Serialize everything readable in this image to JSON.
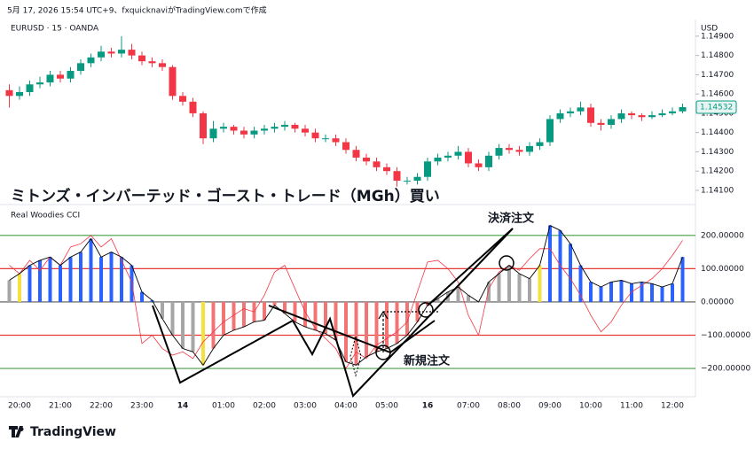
{
  "header": "5月 17, 2026 15:54 UTC+9、fxquicknaviがTradingView.comで作成",
  "overlay_title": "ミトンズ・インバーテッド・ゴースト・トレード（MGh）買い",
  "annotations": [
    "決済注文",
    "新規注文"
  ],
  "brand": "TradingView",
  "chart_data": [
    {
      "type": "candlestick",
      "title": "EURUSD · 15 · OANDA",
      "y_label": "USD",
      "up_color": "#089981",
      "down_color": "#f23645",
      "ylim": [
        1.1404,
        1.1495
      ],
      "yticks": [
        {
          "value": 1.141,
          "label": "1.14100"
        },
        {
          "value": 1.142,
          "label": "1.14200"
        },
        {
          "value": 1.143,
          "label": "1.14300"
        },
        {
          "value": 1.144,
          "label": "1.14400"
        },
        {
          "value": 1.145,
          "label": "1.14500"
        },
        {
          "value": 1.146,
          "label": "1.14600"
        },
        {
          "value": 1.147,
          "label": "1.14700"
        },
        {
          "value": 1.148,
          "label": "1.14800"
        },
        {
          "value": 1.149,
          "label": "1.14900"
        }
      ],
      "open": [
        1.1462,
        1.1459,
        1.1461,
        1.1465,
        1.1466,
        1.147,
        1.1468,
        1.1472,
        1.1476,
        1.1479,
        1.1482,
        1.1481,
        1.1483,
        1.148,
        1.1477,
        1.1476,
        1.1474,
        1.1459,
        1.1456,
        1.145,
        1.1437,
        1.1442,
        1.1443,
        1.1441,
        1.1439,
        1.1441,
        1.1442,
        1.1443,
        1.1444,
        1.1442,
        1.144,
        1.1437,
        1.1437,
        1.1435,
        1.1431,
        1.1427,
        1.1425,
        1.1422,
        1.142,
        1.1415,
        1.1415,
        1.1417,
        1.1425,
        1.1427,
        1.1428,
        1.143,
        1.1424,
        1.1422,
        1.1428,
        1.1432,
        1.1431,
        1.143,
        1.1433,
        1.1435,
        1.1447,
        1.145,
        1.1451,
        1.1453,
        1.1445,
        1.1444,
        1.1447,
        1.145,
        1.1449,
        1.1448,
        1.1449,
        1.145,
        1.1451
      ],
      "high": [
        1.1465,
        1.1464,
        1.1467,
        1.1469,
        1.1472,
        1.1472,
        1.1474,
        1.1478,
        1.1481,
        1.1485,
        1.1484,
        1.149,
        1.1486,
        1.1482,
        1.1479,
        1.1478,
        1.1475,
        1.1461,
        1.1458,
        1.1451,
        1.1446,
        1.1445,
        1.1444,
        1.1443,
        1.1443,
        1.1444,
        1.1445,
        1.1446,
        1.1445,
        1.1444,
        1.1442,
        1.1439,
        1.1439,
        1.1437,
        1.1433,
        1.1429,
        1.1427,
        1.1424,
        1.1422,
        1.1417,
        1.1419,
        1.1427,
        1.1429,
        1.143,
        1.1433,
        1.1432,
        1.1426,
        1.143,
        1.1434,
        1.1434,
        1.1433,
        1.1435,
        1.1437,
        1.1449,
        1.1452,
        1.1453,
        1.1456,
        1.1455,
        1.1447,
        1.1449,
        1.1452,
        1.1451,
        1.145,
        1.1451,
        1.1452,
        1.1453,
        1.1455
      ],
      "low": [
        1.1453,
        1.1457,
        1.1459,
        1.1463,
        1.1464,
        1.1466,
        1.1466,
        1.147,
        1.1474,
        1.1477,
        1.1479,
        1.1479,
        1.1478,
        1.1475,
        1.1474,
        1.1472,
        1.1457,
        1.1454,
        1.1448,
        1.1434,
        1.1435,
        1.144,
        1.1439,
        1.1437,
        1.1437,
        1.1439,
        1.144,
        1.1441,
        1.144,
        1.1438,
        1.1435,
        1.1435,
        1.1433,
        1.1429,
        1.1425,
        1.1423,
        1.142,
        1.1418,
        1.1412,
        1.1413,
        1.1413,
        1.1415,
        1.1423,
        1.1425,
        1.1426,
        1.1422,
        1.142,
        1.142,
        1.1426,
        1.1429,
        1.1428,
        1.1428,
        1.1431,
        1.1433,
        1.1445,
        1.1448,
        1.1449,
        1.1443,
        1.1441,
        1.1442,
        1.1445,
        1.1447,
        1.1446,
        1.1447,
        1.1448,
        1.1449,
        1.145
      ],
      "close": [
        1.1459,
        1.1461,
        1.1465,
        1.1466,
        1.147,
        1.1468,
        1.1472,
        1.1476,
        1.1479,
        1.1482,
        1.1481,
        1.1483,
        1.148,
        1.1477,
        1.1476,
        1.1474,
        1.1459,
        1.1456,
        1.145,
        1.1437,
        1.1442,
        1.1443,
        1.1441,
        1.1439,
        1.1441,
        1.1442,
        1.1443,
        1.1444,
        1.1442,
        1.144,
        1.1437,
        1.1437,
        1.1435,
        1.1431,
        1.1427,
        1.1425,
        1.1422,
        1.142,
        1.1415,
        1.1415,
        1.1417,
        1.1425,
        1.1427,
        1.1428,
        1.143,
        1.1424,
        1.1422,
        1.1428,
        1.1432,
        1.1431,
        1.143,
        1.1433,
        1.1435,
        1.1447,
        1.145,
        1.1451,
        1.1453,
        1.1445,
        1.1444,
        1.1447,
        1.145,
        1.1449,
        1.1448,
        1.1449,
        1.145,
        1.1451,
        1.14532
      ]
    },
    {
      "type": "cci",
      "title": "Real Woodies CCI",
      "ylim": [
        -285,
        282
      ],
      "yticks": [
        {
          "value": 200,
          "label": "200.00000"
        },
        {
          "value": 100,
          "label": "100.00000"
        },
        {
          "value": 0,
          "label": "0.00000"
        },
        {
          "value": -100,
          "label": "−100.00000"
        },
        {
          "value": -200,
          "label": "−200.00000"
        }
      ],
      "level_colors": [
        "#43a047",
        "#e53935",
        "#555555",
        "#e53935",
        "#43a047"
      ],
      "categories": [
        null,
        "20:00",
        null,
        null,
        null,
        "21:00",
        null,
        null,
        null,
        "22:00",
        null,
        null,
        null,
        "23:00",
        null,
        null,
        null,
        "14",
        null,
        null,
        null,
        "01:00",
        null,
        null,
        null,
        "02:00",
        null,
        null,
        null,
        "03:00",
        null,
        null,
        null,
        "04:00",
        null,
        null,
        null,
        "05:00",
        null,
        null,
        null,
        "16",
        null,
        null,
        null,
        "07:00",
        null,
        null,
        null,
        "08:00",
        null,
        null,
        null,
        "09:00",
        null,
        null,
        null,
        "10:00",
        null,
        null,
        null,
        "11:00",
        null,
        null,
        null,
        "12:00",
        null
      ],
      "histogram": [
        65,
        85,
        110,
        125,
        135,
        110,
        135,
        150,
        190,
        135,
        150,
        135,
        110,
        30,
        5,
        -50,
        -100,
        -140,
        -150,
        -190,
        -140,
        -100,
        -85,
        -75,
        -60,
        -55,
        -10,
        -35,
        -60,
        -75,
        -85,
        -95,
        -115,
        -180,
        -190,
        -165,
        -150,
        -140,
        -125,
        -100,
        -60,
        -10,
        10,
        30,
        45,
        20,
        0,
        60,
        85,
        110,
        85,
        70,
        110,
        230,
        215,
        175,
        110,
        60,
        45,
        60,
        65,
        55,
        60,
        55,
        45,
        55,
        135
      ],
      "bar_colors": [
        "#a6a6a6",
        "#f5e13c",
        "#2962ff",
        "#2962ff",
        "#2962ff",
        "#2962ff",
        "#2962ff",
        "#2962ff",
        "#2962ff",
        "#2962ff",
        "#2962ff",
        "#2962ff",
        "#2962ff",
        "#2962ff",
        "#2962ff",
        "#a6a6a6",
        "#a6a6a6",
        "#a6a6a6",
        "#a6a6a6",
        "#f5e13c",
        "#f27474",
        "#f27474",
        "#f27474",
        "#f27474",
        "#f27474",
        "#f27474",
        "#f27474",
        "#f27474",
        "#f27474",
        "#f27474",
        "#f27474",
        "#f27474",
        "#f27474",
        "#f27474",
        "#f27474",
        "#f27474",
        "#f27474",
        "#f27474",
        "#f27474",
        "#f27474",
        "#f27474",
        "#f27474",
        "#a6a6a6",
        "#a6a6a6",
        "#a6a6a6",
        "#a6a6a6",
        "#a6a6a6",
        "#a6a6a6",
        "#a6a6a6",
        "#a6a6a6",
        "#a6a6a6",
        "#a6a6a6",
        "#f5e13c",
        "#2962ff",
        "#2962ff",
        "#2962ff",
        "#2962ff",
        "#2962ff",
        "#2962ff",
        "#2962ff",
        "#2962ff",
        "#2962ff",
        "#2962ff",
        "#2962ff",
        "#2962ff",
        "#2962ff",
        "#2962ff"
      ],
      "line_color": "#000000",
      "signal": [
        110,
        85,
        125,
        95,
        135,
        110,
        165,
        175,
        200,
        165,
        190,
        125,
        60,
        -125,
        -100,
        -140,
        -160,
        -150,
        -170,
        -120,
        -90,
        -60,
        -40,
        -20,
        -30,
        20,
        90,
        110,
        40,
        -30,
        -80,
        -110,
        -140,
        -200,
        -150,
        -170,
        -130,
        -110,
        -90,
        -60,
        30,
        120,
        125,
        100,
        60,
        -40,
        -100,
        40,
        90,
        110,
        95,
        130,
        160,
        160,
        110,
        70,
        20,
        -40,
        -90,
        -60,
        -10,
        30,
        50,
        70,
        100,
        140,
        185
      ],
      "signal_color": "#f23645"
    }
  ]
}
